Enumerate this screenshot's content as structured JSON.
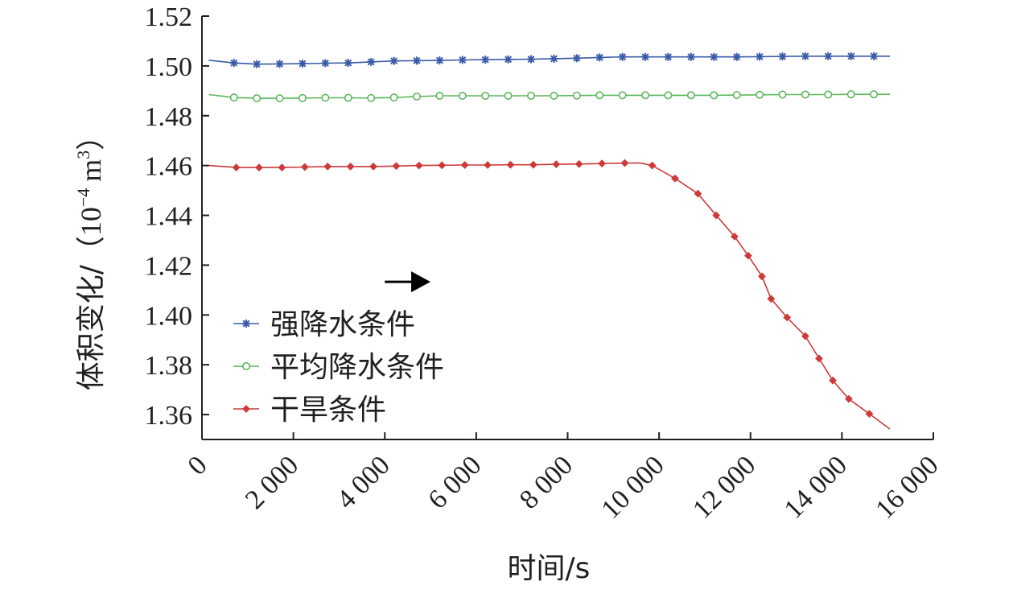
{
  "chart_data": {
    "type": "line",
    "xlabel": "时间/s",
    "ylabel_main": "体积变化/（",
    "ylabel_unit_base": "10",
    "ylabel_unit_exp": "−4",
    "ylabel_unit_m": "m",
    "ylabel_unit_m_exp": "3",
    "ylabel_close": "）",
    "xlim": [
      0,
      16000
    ],
    "ylim": [
      1.35,
      1.52
    ],
    "x_ticks": [
      0,
      2000,
      4000,
      6000,
      8000,
      10000,
      12000,
      14000,
      16000
    ],
    "x_tick_labels": [
      "0",
      "2 000",
      "4 000",
      "6 000",
      "8 000",
      "10 000",
      "12 000",
      "14 000",
      "16 000"
    ],
    "y_ticks": [
      1.36,
      1.38,
      1.4,
      1.42,
      1.44,
      1.46,
      1.48,
      1.5,
      1.52
    ],
    "y_tick_labels": [
      "1.36",
      "1.38",
      "1.40",
      "1.42",
      "1.44",
      "1.46",
      "1.48",
      "1.50",
      "1.52"
    ],
    "legend_position": "lower-left",
    "series": [
      {
        "name": "强降水条件",
        "color": "#3a5ba8",
        "marker": "star",
        "line_x": [
          150,
          700,
          1200,
          1700,
          2200,
          2700,
          3200,
          3700,
          4200,
          4700,
          5200,
          5700,
          6200,
          6700,
          7200,
          7700,
          8200,
          8700,
          9200,
          9700,
          10200,
          10700,
          11200,
          11700,
          12200,
          12700,
          13200,
          13700,
          14200,
          14700,
          15050
        ],
        "line_y": [
          1.5023,
          1.5012,
          1.5007,
          1.5008,
          1.5009,
          1.5011,
          1.5012,
          1.5016,
          1.502,
          1.5021,
          1.5022,
          1.5024,
          1.5025,
          1.5026,
          1.5027,
          1.5029,
          1.5031,
          1.5034,
          1.5036,
          1.5036,
          1.5036,
          1.5036,
          1.5036,
          1.5036,
          1.5037,
          1.5038,
          1.5039,
          1.5039,
          1.5039,
          1.5039,
          1.5039
        ],
        "marker_x": [
          700,
          1200,
          1700,
          2200,
          2700,
          3200,
          3700,
          4200,
          4700,
          5200,
          5700,
          6200,
          6700,
          7200,
          7700,
          8200,
          8700,
          9200,
          9700,
          10200,
          10700,
          11200,
          11700,
          12200,
          12700,
          13200,
          13700,
          14200,
          14700
        ],
        "marker_y": [
          1.5012,
          1.5007,
          1.5008,
          1.5009,
          1.5011,
          1.5012,
          1.5016,
          1.502,
          1.5021,
          1.5022,
          1.5024,
          1.5025,
          1.5026,
          1.5027,
          1.5029,
          1.5031,
          1.5034,
          1.5036,
          1.5036,
          1.5036,
          1.5036,
          1.5036,
          1.5036,
          1.5037,
          1.5038,
          1.5039,
          1.5039,
          1.5039,
          1.5039
        ]
      },
      {
        "name": "平均降水条件",
        "color": "#5cb85c",
        "marker": "circle",
        "line_x": [
          150,
          700,
          1200,
          1700,
          2200,
          2700,
          3200,
          3700,
          4200,
          4700,
          5200,
          5700,
          6200,
          6700,
          7200,
          7700,
          8200,
          8700,
          9200,
          9700,
          10200,
          10700,
          11200,
          11700,
          12200,
          12700,
          13200,
          13700,
          14200,
          14700,
          15050
        ],
        "line_y": [
          1.4885,
          1.4873,
          1.487,
          1.487,
          1.4871,
          1.4872,
          1.4872,
          1.4871,
          1.4873,
          1.4877,
          1.488,
          1.488,
          1.488,
          1.488,
          1.488,
          1.488,
          1.4881,
          1.4882,
          1.4882,
          1.4882,
          1.4882,
          1.4882,
          1.4882,
          1.4883,
          1.4884,
          1.4885,
          1.4885,
          1.4885,
          1.4886,
          1.4886,
          1.4886
        ],
        "marker_x": [
          700,
          1200,
          1700,
          2200,
          2700,
          3200,
          3700,
          4200,
          4700,
          5200,
          5700,
          6200,
          6700,
          7200,
          7700,
          8200,
          8700,
          9200,
          9700,
          10200,
          10700,
          11200,
          11700,
          12200,
          12700,
          13200,
          13700,
          14200,
          14700
        ],
        "marker_y": [
          1.4873,
          1.487,
          1.487,
          1.4871,
          1.4872,
          1.4872,
          1.4871,
          1.4873,
          1.4877,
          1.488,
          1.488,
          1.488,
          1.488,
          1.488,
          1.488,
          1.4881,
          1.4882,
          1.4882,
          1.4882,
          1.4882,
          1.4882,
          1.4882,
          1.4883,
          1.4884,
          1.4885,
          1.4885,
          1.4885,
          1.4886,
          1.4886
        ]
      },
      {
        "name": "干旱条件",
        "color": "#cc3a3a",
        "marker": "diamond",
        "line_x": [
          150,
          750,
          1250,
          1750,
          2250,
          2750,
          3250,
          3750,
          4250,
          4750,
          5250,
          5750,
          6250,
          6750,
          7250,
          7750,
          8250,
          8750,
          9250,
          9600,
          9850,
          10350,
          10850,
          11250,
          11650,
          11950,
          12250,
          12450,
          12800,
          13200,
          13500,
          13800,
          14150,
          14600,
          15050
        ],
        "line_y": [
          1.46,
          1.4592,
          1.4592,
          1.4592,
          1.4594,
          1.4596,
          1.4596,
          1.4596,
          1.4598,
          1.46,
          1.4601,
          1.4602,
          1.4602,
          1.4603,
          1.4603,
          1.4605,
          1.4606,
          1.4608,
          1.461,
          1.461,
          1.46,
          1.4548,
          1.4487,
          1.44,
          1.4315,
          1.4238,
          1.4155,
          1.4065,
          1.399,
          1.3915,
          1.3825,
          1.3737,
          1.3663,
          1.3603,
          1.3542
        ],
        "marker_x": [
          750,
          1250,
          1750,
          2250,
          2750,
          3250,
          3750,
          4250,
          4750,
          5250,
          5750,
          6250,
          6750,
          7250,
          7750,
          8250,
          8750,
          9250,
          9850,
          10350,
          10850,
          11250,
          11650,
          11950,
          12250,
          12450,
          12800,
          13200,
          13500,
          13800,
          14150,
          14600
        ],
        "marker_y": [
          1.4592,
          1.4592,
          1.4592,
          1.4594,
          1.4596,
          1.4596,
          1.4596,
          1.4598,
          1.46,
          1.4601,
          1.4602,
          1.4602,
          1.4603,
          1.4603,
          1.4605,
          1.4606,
          1.4608,
          1.461,
          1.46,
          1.4548,
          1.4487,
          1.44,
          1.4315,
          1.4238,
          1.4155,
          1.4065,
          1.399,
          1.3915,
          1.3825,
          1.3737,
          1.3663,
          1.3603
        ]
      }
    ],
    "annotation": {
      "type": "arrow",
      "x_start": 4000,
      "x_end": 5000,
      "y": 1.4133
    }
  }
}
